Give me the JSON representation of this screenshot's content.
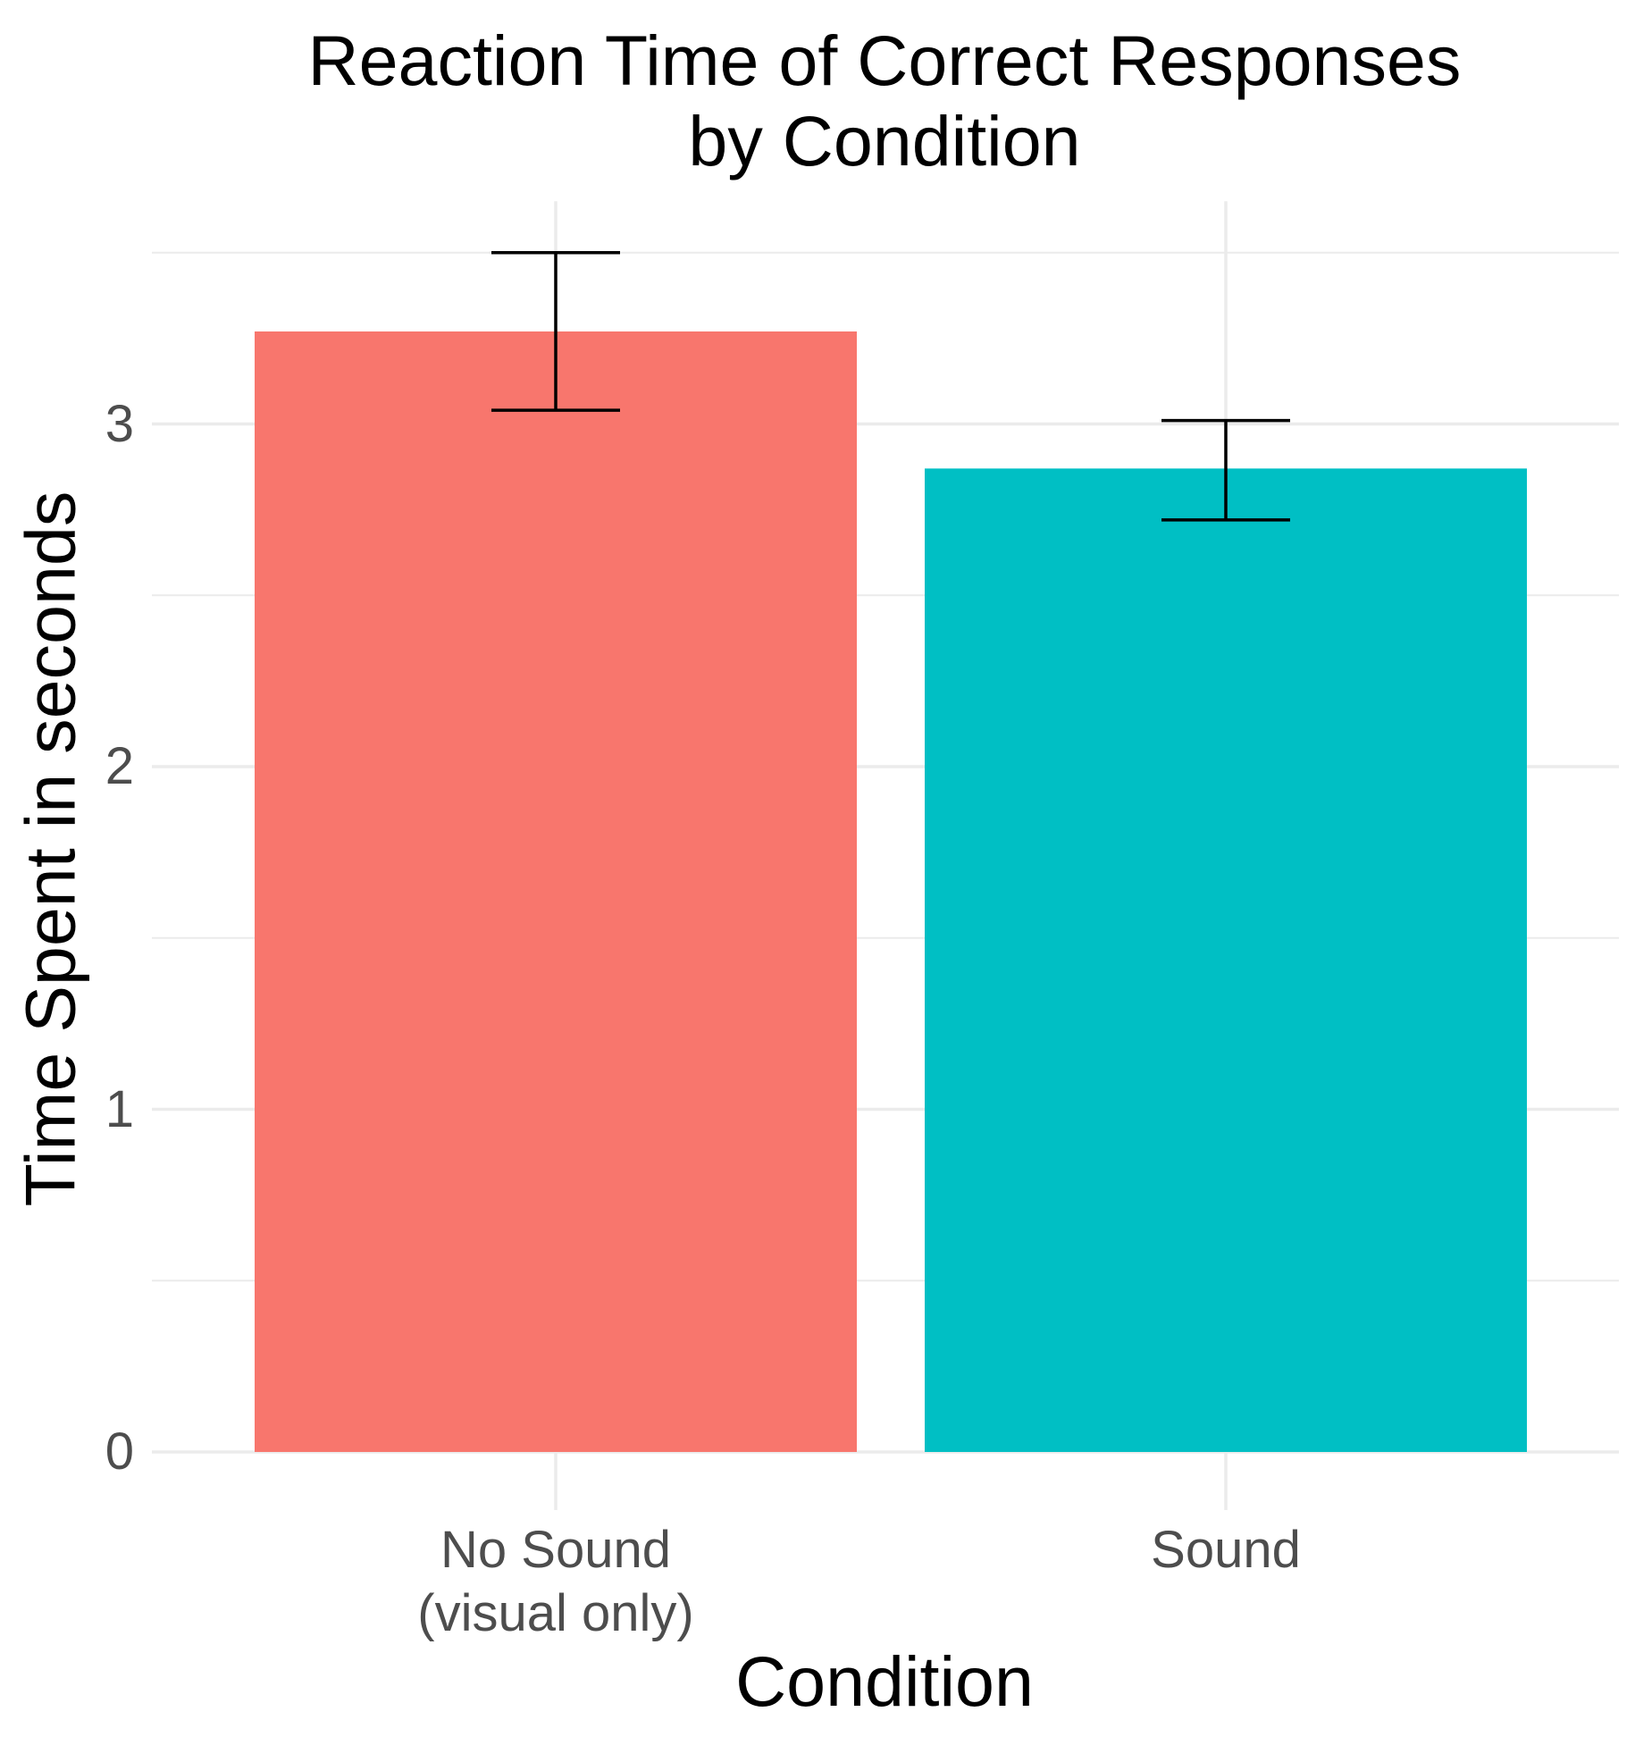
{
  "chart_data": {
    "type": "bar",
    "title_lines": [
      "Reaction Time of Correct Responses",
      "by Condition"
    ],
    "xlabel": "Condition",
    "ylabel": "Time Spent in seconds",
    "categories": [
      {
        "lines": [
          "No Sound",
          "(visual only)"
        ]
      },
      {
        "lines": [
          "Sound"
        ]
      }
    ],
    "values": [
      3.27,
      2.87
    ],
    "error_bars": [
      {
        "low": 3.04,
        "high": 3.5
      },
      {
        "low": 2.72,
        "high": 3.01
      }
    ],
    "colors": [
      "#F8766D",
      "#00BFC4"
    ],
    "ylim": [
      0,
      3.65
    ],
    "yticks": [
      0,
      1,
      2,
      3
    ],
    "grid": true,
    "legend": "none"
  }
}
